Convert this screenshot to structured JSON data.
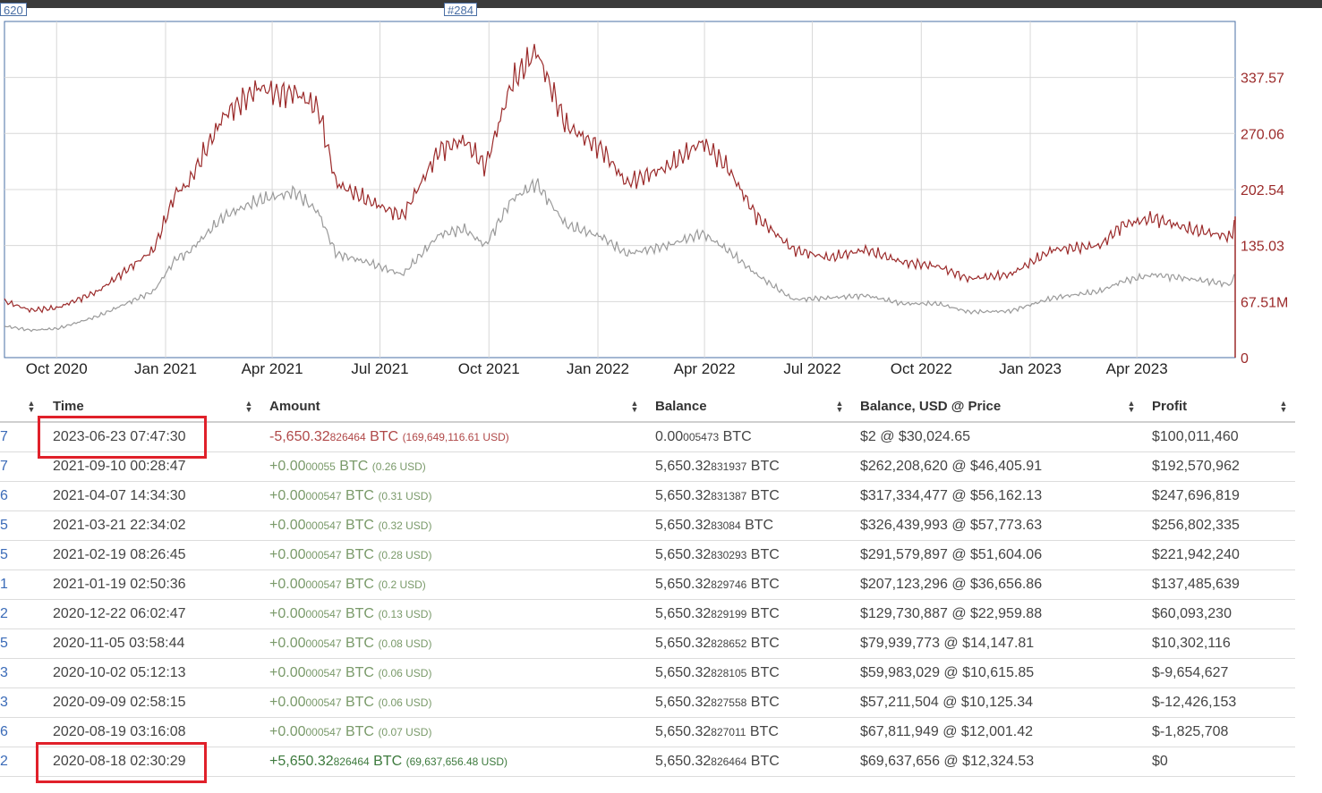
{
  "chart": {
    "flags": [
      "620",
      "#284"
    ],
    "x_ticks": [
      "Oct 2020",
      "Jan 2021",
      "Apr 2021",
      "Jul 2021",
      "Oct 2021",
      "Jan 2022",
      "Apr 2022",
      "Jul 2022",
      "Oct 2022",
      "Jan 2023",
      "Apr 2023"
    ],
    "y_ticks": [
      "337.57",
      "270.06",
      "202.54",
      "135.03",
      "67.51M",
      "0"
    ],
    "colors": {
      "balance_usd": "#9b2a2a",
      "price": "#9a9a9a",
      "grid": "#d8d8d8"
    }
  },
  "chart_data": {
    "type": "line",
    "x_range": [
      "2020-08-18",
      "2023-06-23"
    ],
    "ylim": [
      0,
      405
    ],
    "series": [
      {
        "color": "#9b2a2a",
        "points": [
          [
            "2020-08-18",
            68
          ],
          [
            "2020-09-09",
            57
          ],
          [
            "2020-10-02",
            60
          ],
          [
            "2020-11-05",
            80
          ],
          [
            "2020-12-22",
            130
          ],
          [
            "2021-01-10",
            200
          ],
          [
            "2021-01-19",
            207
          ],
          [
            "2021-02-19",
            291
          ],
          [
            "2021-03-21",
            326
          ],
          [
            "2021-04-07",
            317
          ],
          [
            "2021-04-20",
            320
          ],
          [
            "2021-05-10",
            300
          ],
          [
            "2021-05-25",
            210
          ],
          [
            "2021-06-20",
            190
          ],
          [
            "2021-07-20",
            170
          ],
          [
            "2021-08-20",
            250
          ],
          [
            "2021-09-10",
            262
          ],
          [
            "2021-09-28",
            230
          ],
          [
            "2021-10-20",
            330
          ],
          [
            "2021-11-10",
            370
          ],
          [
            "2021-12-05",
            280
          ],
          [
            "2022-01-05",
            250
          ],
          [
            "2022-01-25",
            210
          ],
          [
            "2022-03-01",
            230
          ],
          [
            "2022-03-30",
            260
          ],
          [
            "2022-04-20",
            230
          ],
          [
            "2022-05-15",
            170
          ],
          [
            "2022-06-15",
            130
          ],
          [
            "2022-07-15",
            120
          ],
          [
            "2022-08-15",
            130
          ],
          [
            "2022-09-15",
            115
          ],
          [
            "2022-10-15",
            110
          ],
          [
            "2022-11-10",
            95
          ],
          [
            "2022-12-15",
            100
          ],
          [
            "2023-01-20",
            130
          ],
          [
            "2023-03-01",
            135
          ],
          [
            "2023-03-20",
            160
          ],
          [
            "2023-04-15",
            168
          ],
          [
            "2023-05-15",
            155
          ],
          [
            "2023-06-20",
            145
          ],
          [
            "2023-06-23",
            170
          ]
        ]
      },
      {
        "color": "#9a9a9a",
        "points": [
          [
            "2020-08-18",
            38
          ],
          [
            "2020-09-09",
            33
          ],
          [
            "2020-10-02",
            35
          ],
          [
            "2020-11-05",
            50
          ],
          [
            "2020-12-22",
            80
          ],
          [
            "2021-01-10",
            120
          ],
          [
            "2021-01-19",
            125
          ],
          [
            "2021-02-19",
            170
          ],
          [
            "2021-03-21",
            190
          ],
          [
            "2021-04-07",
            195
          ],
          [
            "2021-04-20",
            200
          ],
          [
            "2021-05-10",
            175
          ],
          [
            "2021-05-25",
            125
          ],
          [
            "2021-06-20",
            115
          ],
          [
            "2021-07-20",
            100
          ],
          [
            "2021-08-20",
            148
          ],
          [
            "2021-09-10",
            155
          ],
          [
            "2021-09-28",
            135
          ],
          [
            "2021-10-20",
            190
          ],
          [
            "2021-11-10",
            210
          ],
          [
            "2021-12-05",
            160
          ],
          [
            "2022-01-05",
            145
          ],
          [
            "2022-01-25",
            125
          ],
          [
            "2022-03-01",
            135
          ],
          [
            "2022-03-30",
            150
          ],
          [
            "2022-04-20",
            130
          ],
          [
            "2022-05-15",
            100
          ],
          [
            "2022-06-15",
            70
          ],
          [
            "2022-07-15",
            72
          ],
          [
            "2022-08-15",
            75
          ],
          [
            "2022-09-15",
            65
          ],
          [
            "2022-10-15",
            65
          ],
          [
            "2022-11-10",
            55
          ],
          [
            "2022-12-15",
            56
          ],
          [
            "2023-01-20",
            72
          ],
          [
            "2023-03-01",
            80
          ],
          [
            "2023-03-20",
            92
          ],
          [
            "2023-04-15",
            100
          ],
          [
            "2023-05-15",
            95
          ],
          [
            "2023-06-20",
            88
          ],
          [
            "2023-06-23",
            105
          ]
        ]
      }
    ]
  },
  "table": {
    "headers": [
      "Time",
      "Amount",
      "Balance",
      "Balance, USD @ Price",
      "Profit"
    ],
    "rows": [
      {
        "id": "7",
        "time": "2023-06-23 07:47:30",
        "amt_sign": "-",
        "amt_main": "5,650.32",
        "amt_small": "826464",
        "amt_unit": " BTC",
        "amt_usd": "(169,649,116.61 USD)",
        "bal_main": "0.00",
        "bal_small": "005473",
        "bal_unit": " BTC",
        "usd": "$2 @ $30,024.65",
        "profit": "$100,011,460",
        "kind": "neg"
      },
      {
        "id": "7",
        "time": "2021-09-10 00:28:47",
        "amt_sign": "+",
        "amt_main": "0.00",
        "amt_small": "00055",
        "amt_unit": " BTC",
        "amt_usd": "(0.26 USD)",
        "bal_main": "5,650.32",
        "bal_small": "831937",
        "bal_unit": " BTC",
        "usd": "$262,208,620 @ $46,405.91",
        "profit": "$192,570,962",
        "kind": "pos"
      },
      {
        "id": "6",
        "time": "2021-04-07 14:34:30",
        "amt_sign": "+",
        "amt_main": "0.00",
        "amt_small": "000547",
        "amt_unit": " BTC",
        "amt_usd": "(0.31 USD)",
        "bal_main": "5,650.32",
        "bal_small": "831387",
        "bal_unit": " BTC",
        "usd": "$317,334,477 @ $56,162.13",
        "profit": "$247,696,819",
        "kind": "pos"
      },
      {
        "id": "5",
        "time": "2021-03-21 22:34:02",
        "amt_sign": "+",
        "amt_main": "0.00",
        "amt_small": "000547",
        "amt_unit": " BTC",
        "amt_usd": "(0.32 USD)",
        "bal_main": "5,650.32",
        "bal_small": "83084",
        "bal_unit": " BTC",
        "usd": "$326,439,993 @ $57,773.63",
        "profit": "$256,802,335",
        "kind": "pos"
      },
      {
        "id": "5",
        "time": "2021-02-19 08:26:45",
        "amt_sign": "+",
        "amt_main": "0.00",
        "amt_small": "000547",
        "amt_unit": " BTC",
        "amt_usd": "(0.28 USD)",
        "bal_main": "5,650.32",
        "bal_small": "830293",
        "bal_unit": " BTC",
        "usd": "$291,579,897 @ $51,604.06",
        "profit": "$221,942,240",
        "kind": "pos"
      },
      {
        "id": "1",
        "time": "2021-01-19 02:50:36",
        "amt_sign": "+",
        "amt_main": "0.00",
        "amt_small": "000547",
        "amt_unit": " BTC",
        "amt_usd": "(0.2 USD)",
        "bal_main": "5,650.32",
        "bal_small": "829746",
        "bal_unit": " BTC",
        "usd": "$207,123,296 @ $36,656.86",
        "profit": "$137,485,639",
        "kind": "pos"
      },
      {
        "id": "2",
        "time": "2020-12-22 06:02:47",
        "amt_sign": "+",
        "amt_main": "0.00",
        "amt_small": "000547",
        "amt_unit": " BTC",
        "amt_usd": "(0.13 USD)",
        "bal_main": "5,650.32",
        "bal_small": "829199",
        "bal_unit": " BTC",
        "usd": "$129,730,887 @ $22,959.88",
        "profit": "$60,093,230",
        "kind": "pos"
      },
      {
        "id": "5",
        "time": "2020-11-05 03:58:44",
        "amt_sign": "+",
        "amt_main": "0.00",
        "amt_small": "000547",
        "amt_unit": " BTC",
        "amt_usd": "(0.08 USD)",
        "bal_main": "5,650.32",
        "bal_small": "828652",
        "bal_unit": " BTC",
        "usd": "$79,939,773 @ $14,147.81",
        "profit": "$10,302,116",
        "kind": "pos"
      },
      {
        "id": "3",
        "time": "2020-10-02 05:12:13",
        "amt_sign": "+",
        "amt_main": "0.00",
        "amt_small": "000547",
        "amt_unit": " BTC",
        "amt_usd": "(0.06 USD)",
        "bal_main": "5,650.32",
        "bal_small": "828105",
        "bal_unit": " BTC",
        "usd": "$59,983,029 @ $10,615.85",
        "profit": "$-9,654,627",
        "kind": "pos"
      },
      {
        "id": "3",
        "time": "2020-09-09 02:58:15",
        "amt_sign": "+",
        "amt_main": "0.00",
        "amt_small": "000547",
        "amt_unit": " BTC",
        "amt_usd": "(0.06 USD)",
        "bal_main": "5,650.32",
        "bal_small": "827558",
        "bal_unit": " BTC",
        "usd": "$57,211,504 @ $10,125.34",
        "profit": "$-12,426,153",
        "kind": "pos"
      },
      {
        "id": "6",
        "time": "2020-08-19 03:16:08",
        "amt_sign": "+",
        "amt_main": "0.00",
        "amt_small": "000547",
        "amt_unit": " BTC",
        "amt_usd": "(0.07 USD)",
        "bal_main": "5,650.32",
        "bal_small": "827011",
        "bal_unit": " BTC",
        "usd": "$67,811,949 @ $12,001.42",
        "profit": "$-1,825,708",
        "kind": "pos"
      },
      {
        "id": "2",
        "time": "2020-08-18 02:30:29",
        "amt_sign": "+",
        "amt_main": "5,650.32",
        "amt_small": "826464",
        "amt_unit": " BTC",
        "amt_usd": "(69,637,656.48 USD)",
        "bal_main": "5,650.32",
        "bal_small": "826464",
        "bal_unit": " BTC",
        "usd": "$69,637,656 @ $12,324.53",
        "profit": "$0",
        "kind": "pos-strong"
      }
    ]
  }
}
